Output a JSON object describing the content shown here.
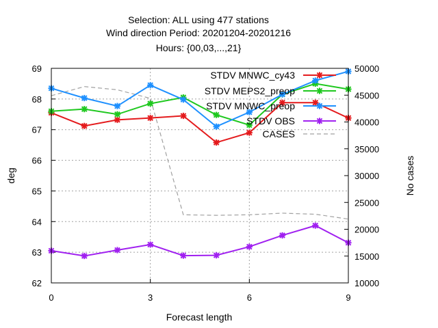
{
  "chart_data": {
    "type": "line",
    "title": [
      "Selection: ALL using   477 stations",
      "Wind direction   Period: 20201204-20201216",
      "Hours: {00,03,...,21}"
    ],
    "xlabel": "Forecast length",
    "ylabel": "deg",
    "y2label": "No cases",
    "xlim": [
      0,
      9
    ],
    "ylim": [
      62,
      69
    ],
    "y2lim": [
      10000,
      50000
    ],
    "xticks": [
      "0",
      "3",
      "6",
      "9"
    ],
    "yticks": [
      "62",
      "63",
      "64",
      "65",
      "66",
      "67",
      "68",
      "69"
    ],
    "y2ticks": [
      "10000",
      "15000",
      "20000",
      "25000",
      "30000",
      "35000",
      "40000",
      "45000",
      "50000"
    ],
    "grid": true,
    "legend_position": "top-right",
    "x": [
      0,
      1,
      2,
      3,
      4,
      5,
      6,
      7,
      8,
      9
    ],
    "series": [
      {
        "name": "STDV MNWC_cy43",
        "color": "#e41a1c",
        "axis": "left",
        "values": [
          67.55,
          67.12,
          67.32,
          67.38,
          67.45,
          66.58,
          66.9,
          67.88,
          67.88,
          67.38
        ]
      },
      {
        "name": "STDV MEPS2_preop",
        "color": "#1ec81e",
        "axis": "left",
        "values": [
          67.6,
          67.67,
          67.5,
          67.85,
          68.05,
          67.48,
          67.15,
          68.15,
          68.5,
          68.32
        ]
      },
      {
        "name": "STDV MNWC_preop",
        "color": "#1e90ff",
        "axis": "left",
        "values": [
          68.35,
          68.03,
          67.77,
          68.45,
          67.98,
          67.1,
          67.57,
          68.15,
          68.6,
          68.9
        ]
      },
      {
        "name": "STDV OBS",
        "color": "#a020f0",
        "axis": "left",
        "values": [
          63.05,
          62.88,
          63.07,
          63.25,
          62.89,
          62.9,
          63.18,
          63.55,
          63.87,
          63.31
        ]
      },
      {
        "name": "CASES",
        "color": "#a0a0a0",
        "axis": "right",
        "dashed": true,
        "values": [
          44900,
          46600,
          46000,
          44400,
          22700,
          22600,
          22700,
          23000,
          22800,
          21900
        ]
      }
    ]
  }
}
